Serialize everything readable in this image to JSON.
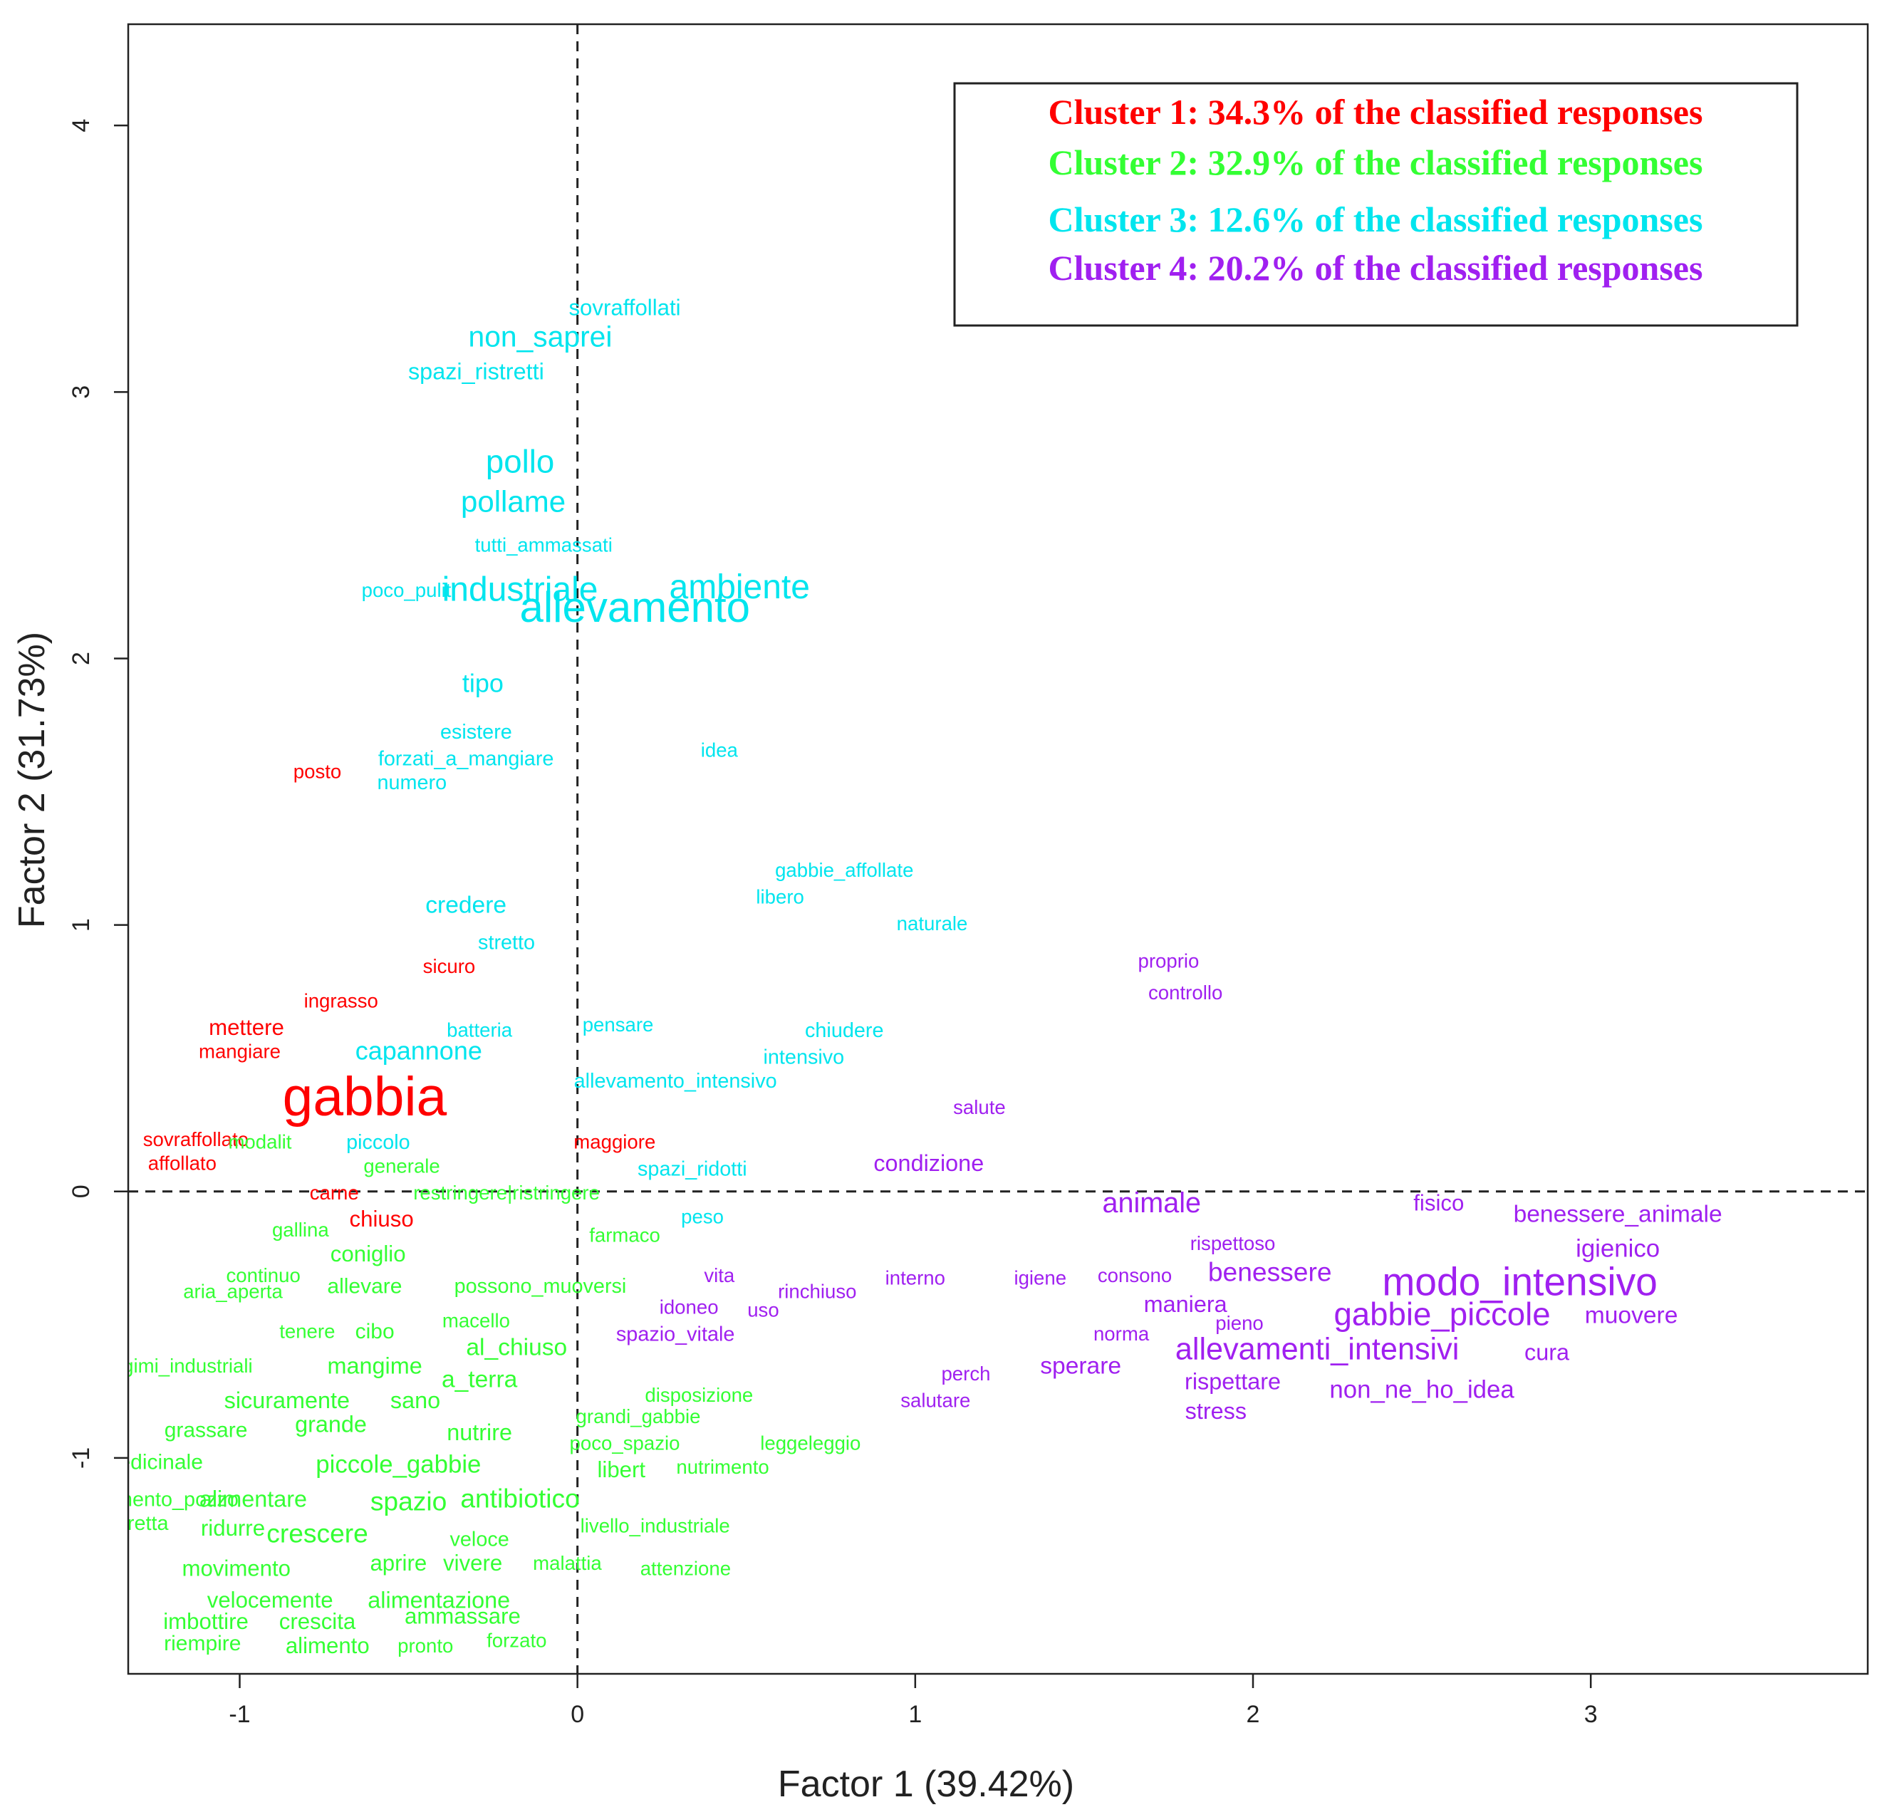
{
  "chart_data": {
    "type": "scatter",
    "xlabel": "Factor 1 (39.42%)",
    "ylabel": "Factor 2 (31.73%)",
    "xlim": [
      -1.33,
      3.82
    ],
    "ylim": [
      -1.81,
      4.38
    ],
    "x_ticks": [
      -1,
      0,
      1,
      2,
      3
    ],
    "y_ticks": [
      -1,
      0,
      1,
      2,
      3,
      4
    ],
    "x_tick_labels": [
      "-1",
      "0",
      "1",
      "2",
      "3"
    ],
    "y_tick_labels": [
      "-1",
      "0",
      "1",
      "2",
      "3",
      "4"
    ],
    "reference_lines": {
      "x": 0,
      "y": 0,
      "style": "dashed"
    },
    "grid": false,
    "legend_position": "top-right",
    "colors": {
      "cluster1": "#ff0000",
      "cluster2": "#33ff33",
      "cluster3": "#00e5ee",
      "cluster4": "#a020f0"
    },
    "legend": [
      {
        "text": "Cluster 1: 34.3% of the classified responses",
        "cluster": "cluster1"
      },
      {
        "text": "Cluster 2: 32.9% of the classified responses",
        "cluster": "cluster2"
      },
      {
        "text": "Cluster 3: 12.6% of the classified responses",
        "cluster": "cluster3"
      },
      {
        "text": "Cluster 4: 20.2% of the classified responses",
        "cluster": "cluster4"
      }
    ],
    "points": [
      {
        "label": "sovraffollati",
        "x": 0.14,
        "y": 3.31,
        "cluster": "cluster3",
        "size": 1.3
      },
      {
        "label": "non_saprei",
        "x": -0.11,
        "y": 3.2,
        "cluster": "cluster3",
        "size": 1.7
      },
      {
        "label": "spazi_ristretti",
        "x": -0.3,
        "y": 3.07,
        "cluster": "cluster3",
        "size": 1.35
      },
      {
        "label": "pollo",
        "x": -0.17,
        "y": 2.73,
        "cluster": "cluster3",
        "size": 1.9
      },
      {
        "label": "pollame",
        "x": -0.19,
        "y": 2.58,
        "cluster": "cluster3",
        "size": 1.75
      },
      {
        "label": "tutti_ammassati",
        "x": -0.1,
        "y": 2.42,
        "cluster": "cluster3",
        "size": 1.15
      },
      {
        "label": "industriale",
        "x": -0.17,
        "y": 2.25,
        "cluster": "cluster3",
        "size": 2.0
      },
      {
        "label": "ambiente",
        "x": 0.48,
        "y": 2.26,
        "cluster": "cluster3",
        "size": 2.0
      },
      {
        "label": "allevamento",
        "x": 0.17,
        "y": 2.18,
        "cluster": "cluster3",
        "size": 2.5
      },
      {
        "label": "poco_puliti",
        "x": -0.5,
        "y": 2.25,
        "cluster": "cluster3",
        "size": 1.15
      },
      {
        "label": "tipo",
        "x": -0.28,
        "y": 1.9,
        "cluster": "cluster3",
        "size": 1.5
      },
      {
        "label": "esistere",
        "x": -0.3,
        "y": 1.72,
        "cluster": "cluster3",
        "size": 1.2
      },
      {
        "label": "forzati_a_mangiare",
        "x": -0.33,
        "y": 1.62,
        "cluster": "cluster3",
        "size": 1.2
      },
      {
        "label": "numero",
        "x": -0.49,
        "y": 1.53,
        "cluster": "cluster3",
        "size": 1.2
      },
      {
        "label": "idea",
        "x": 0.42,
        "y": 1.65,
        "cluster": "cluster3",
        "size": 1.15
      },
      {
        "label": "gabbie_affollate",
        "x": 0.79,
        "y": 1.2,
        "cluster": "cluster3",
        "size": 1.15
      },
      {
        "label": "libero",
        "x": 0.6,
        "y": 1.1,
        "cluster": "cluster3",
        "size": 1.15
      },
      {
        "label": "naturale",
        "x": 1.05,
        "y": 1.0,
        "cluster": "cluster3",
        "size": 1.15
      },
      {
        "label": "credere",
        "x": -0.33,
        "y": 1.07,
        "cluster": "cluster3",
        "size": 1.4
      },
      {
        "label": "stretto",
        "x": -0.21,
        "y": 0.93,
        "cluster": "cluster3",
        "size": 1.2
      },
      {
        "label": "batteria",
        "x": -0.29,
        "y": 0.6,
        "cluster": "cluster3",
        "size": 1.15
      },
      {
        "label": "pensare",
        "x": 0.12,
        "y": 0.62,
        "cluster": "cluster3",
        "size": 1.15
      },
      {
        "label": "chiudere",
        "x": 0.79,
        "y": 0.6,
        "cluster": "cluster3",
        "size": 1.2
      },
      {
        "label": "capannone",
        "x": -0.47,
        "y": 0.52,
        "cluster": "cluster3",
        "size": 1.5
      },
      {
        "label": "intensivo",
        "x": 0.67,
        "y": 0.5,
        "cluster": "cluster3",
        "size": 1.2
      },
      {
        "label": "allevamento_intensivo",
        "x": 0.29,
        "y": 0.41,
        "cluster": "cluster3",
        "size": 1.2
      },
      {
        "label": "piccolo",
        "x": -0.59,
        "y": 0.18,
        "cluster": "cluster3",
        "size": 1.2
      },
      {
        "label": "spazi_ridotti",
        "x": 0.34,
        "y": 0.08,
        "cluster": "cluster3",
        "size": 1.2
      },
      {
        "label": "peso",
        "x": 0.37,
        "y": -0.1,
        "cluster": "cluster3",
        "size": 1.15
      },
      {
        "label": "posto",
        "x": -0.77,
        "y": 1.57,
        "cluster": "cluster1",
        "size": 1.15
      },
      {
        "label": "sicuro",
        "x": -0.38,
        "y": 0.84,
        "cluster": "cluster1",
        "size": 1.15
      },
      {
        "label": "ingrasso",
        "x": -0.7,
        "y": 0.71,
        "cluster": "cluster1",
        "size": 1.15
      },
      {
        "label": "mettere",
        "x": -0.98,
        "y": 0.61,
        "cluster": "cluster1",
        "size": 1.3
      },
      {
        "label": "mangiare",
        "x": -1.0,
        "y": 0.52,
        "cluster": "cluster1",
        "size": 1.15
      },
      {
        "label": "gabbia",
        "x": -0.63,
        "y": 0.34,
        "cluster": "cluster1",
        "size": 3.2
      },
      {
        "label": "sovraffollato",
        "x": -1.13,
        "y": 0.19,
        "cluster": "cluster1",
        "size": 1.15
      },
      {
        "label": "affollato",
        "x": -1.17,
        "y": 0.1,
        "cluster": "cluster1",
        "size": 1.15
      },
      {
        "label": "maggiore",
        "x": 0.11,
        "y": 0.18,
        "cluster": "cluster1",
        "size": 1.15
      },
      {
        "label": "carne",
        "x": -0.72,
        "y": -0.01,
        "cluster": "cluster1",
        "size": 1.15
      },
      {
        "label": "chiuso",
        "x": -0.58,
        "y": -0.11,
        "cluster": "cluster1",
        "size": 1.3
      },
      {
        "label": "modalit",
        "x": -0.94,
        "y": 0.18,
        "cluster": "cluster2",
        "size": 1.15
      },
      {
        "label": "generale",
        "x": -0.52,
        "y": 0.09,
        "cluster": "cluster2",
        "size": 1.15
      },
      {
        "label": "restringere|ristringere",
        "x": -0.21,
        "y": -0.01,
        "cluster": "cluster2",
        "size": 1.15
      },
      {
        "label": "gallina",
        "x": -0.82,
        "y": -0.15,
        "cluster": "cluster2",
        "size": 1.15
      },
      {
        "label": "farmaco",
        "x": 0.14,
        "y": -0.17,
        "cluster": "cluster2",
        "size": 1.15
      },
      {
        "label": "coniglio",
        "x": -0.62,
        "y": -0.24,
        "cluster": "cluster2",
        "size": 1.3
      },
      {
        "label": "continuo",
        "x": -0.93,
        "y": -0.32,
        "cluster": "cluster2",
        "size": 1.15
      },
      {
        "label": "aria_aperta",
        "x": -1.02,
        "y": -0.38,
        "cluster": "cluster2",
        "size": 1.15
      },
      {
        "label": "allevare",
        "x": -0.63,
        "y": -0.36,
        "cluster": "cluster2",
        "size": 1.25
      },
      {
        "label": "possono_muoversi",
        "x": -0.11,
        "y": -0.36,
        "cluster": "cluster2",
        "size": 1.2
      },
      {
        "label": "macello",
        "x": -0.3,
        "y": -0.49,
        "cluster": "cluster2",
        "size": 1.15
      },
      {
        "label": "tenere",
        "x": -0.8,
        "y": -0.53,
        "cluster": "cluster2",
        "size": 1.15
      },
      {
        "label": "cibo",
        "x": -0.6,
        "y": -0.53,
        "cluster": "cluster2",
        "size": 1.25
      },
      {
        "label": "al_chiuso",
        "x": -0.18,
        "y": -0.59,
        "cluster": "cluster2",
        "size": 1.4
      },
      {
        "label": "regimi_industriali",
        "x": -1.18,
        "y": -0.66,
        "cluster": "cluster2",
        "size": 1.15
      },
      {
        "label": "mangime",
        "x": -0.6,
        "y": -0.66,
        "cluster": "cluster2",
        "size": 1.35
      },
      {
        "label": "a_terra",
        "x": -0.29,
        "y": -0.71,
        "cluster": "cluster2",
        "size": 1.4
      },
      {
        "label": "disposizione",
        "x": 0.36,
        "y": -0.77,
        "cluster": "cluster2",
        "size": 1.15
      },
      {
        "label": "sicuramente",
        "x": -0.86,
        "y": -0.79,
        "cluster": "cluster2",
        "size": 1.35
      },
      {
        "label": "sano",
        "x": -0.48,
        "y": -0.79,
        "cluster": "cluster2",
        "size": 1.35
      },
      {
        "label": "grandi_gabbie",
        "x": 0.18,
        "y": -0.85,
        "cluster": "cluster2",
        "size": 1.15
      },
      {
        "label": "grassare",
        "x": -1.1,
        "y": -0.9,
        "cluster": "cluster2",
        "size": 1.25
      },
      {
        "label": "grande",
        "x": -0.73,
        "y": -0.88,
        "cluster": "cluster2",
        "size": 1.35
      },
      {
        "label": "nutrire",
        "x": -0.29,
        "y": -0.91,
        "cluster": "cluster2",
        "size": 1.35
      },
      {
        "label": "poco_spazio",
        "x": 0.14,
        "y": -0.95,
        "cluster": "cluster2",
        "size": 1.15
      },
      {
        "label": "leggeleggio",
        "x": 0.69,
        "y": -0.95,
        "cluster": "cluster2",
        "size": 1.15
      },
      {
        "label": "piccole_gabbie",
        "x": -0.53,
        "y": -1.03,
        "cluster": "cluster2",
        "size": 1.45
      },
      {
        "label": "nutrimento",
        "x": 0.43,
        "y": -1.04,
        "cluster": "cluster2",
        "size": 1.15
      },
      {
        "label": "libert",
        "x": 0.13,
        "y": -1.05,
        "cluster": "cluster2",
        "size": 1.3
      },
      {
        "label": "medicinale",
        "x": -1.26,
        "y": -1.02,
        "cluster": "cluster2",
        "size": 1.25
      },
      {
        "label": "alimentare",
        "x": -0.96,
        "y": -1.16,
        "cluster": "cluster2",
        "size": 1.35
      },
      {
        "label": "spazio",
        "x": -0.5,
        "y": -1.17,
        "cluster": "cluster2",
        "size": 1.55
      },
      {
        "label": "antibiotico",
        "x": -0.17,
        "y": -1.16,
        "cluster": "cluster2",
        "size": 1.55
      },
      {
        "label": "sfruttamento_pozzo",
        "x": -1.27,
        "y": -1.16,
        "cluster": "cluster2",
        "size": 1.2
      },
      {
        "label": "fretta",
        "x": -1.28,
        "y": -1.25,
        "cluster": "cluster2",
        "size": 1.2
      },
      {
        "label": "ridurre",
        "x": -1.02,
        "y": -1.27,
        "cluster": "cluster2",
        "size": 1.3
      },
      {
        "label": "crescere",
        "x": -0.77,
        "y": -1.29,
        "cluster": "cluster2",
        "size": 1.55
      },
      {
        "label": "veloce",
        "x": -0.29,
        "y": -1.31,
        "cluster": "cluster2",
        "size": 1.2
      },
      {
        "label": "livello_industriale",
        "x": 0.23,
        "y": -1.26,
        "cluster": "cluster2",
        "size": 1.15
      },
      {
        "label": "movimento",
        "x": -1.01,
        "y": -1.42,
        "cluster": "cluster2",
        "size": 1.3
      },
      {
        "label": "aprire",
        "x": -0.53,
        "y": -1.4,
        "cluster": "cluster2",
        "size": 1.3
      },
      {
        "label": "vivere",
        "x": -0.31,
        "y": -1.4,
        "cluster": "cluster2",
        "size": 1.3
      },
      {
        "label": "malattia",
        "x": -0.03,
        "y": -1.4,
        "cluster": "cluster2",
        "size": 1.15
      },
      {
        "label": "attenzione",
        "x": 0.32,
        "y": -1.42,
        "cluster": "cluster2",
        "size": 1.15
      },
      {
        "label": "velocemente",
        "x": -0.91,
        "y": -1.54,
        "cluster": "cluster2",
        "size": 1.3
      },
      {
        "label": "alimentazione",
        "x": -0.41,
        "y": -1.54,
        "cluster": "cluster2",
        "size": 1.35
      },
      {
        "label": "imbottire",
        "x": -1.1,
        "y": -1.62,
        "cluster": "cluster2",
        "size": 1.3
      },
      {
        "label": "crescita",
        "x": -0.77,
        "y": -1.62,
        "cluster": "cluster2",
        "size": 1.3
      },
      {
        "label": "ammassare",
        "x": -0.34,
        "y": -1.6,
        "cluster": "cluster2",
        "size": 1.3
      },
      {
        "label": "riempire",
        "x": -1.11,
        "y": -1.7,
        "cluster": "cluster2",
        "size": 1.25
      },
      {
        "label": "alimento",
        "x": -0.74,
        "y": -1.71,
        "cluster": "cluster2",
        "size": 1.3
      },
      {
        "label": "pronto",
        "x": -0.45,
        "y": -1.71,
        "cluster": "cluster2",
        "size": 1.15
      },
      {
        "label": "forzato",
        "x": -0.18,
        "y": -1.69,
        "cluster": "cluster2",
        "size": 1.15
      },
      {
        "label": "proprio",
        "x": 1.75,
        "y": 0.86,
        "cluster": "cluster4",
        "size": 1.15
      },
      {
        "label": "controllo",
        "x": 1.8,
        "y": 0.74,
        "cluster": "cluster4",
        "size": 1.15
      },
      {
        "label": "salute",
        "x": 1.19,
        "y": 0.31,
        "cluster": "cluster4",
        "size": 1.15
      },
      {
        "label": "condizione",
        "x": 1.04,
        "y": 0.1,
        "cluster": "cluster4",
        "size": 1.35
      },
      {
        "label": "animale",
        "x": 1.7,
        "y": -0.05,
        "cluster": "cluster4",
        "size": 1.65
      },
      {
        "label": "fisico",
        "x": 2.55,
        "y": -0.05,
        "cluster": "cluster4",
        "size": 1.3
      },
      {
        "label": "benessere_animale",
        "x": 3.08,
        "y": -0.09,
        "cluster": "cluster4",
        "size": 1.4
      },
      {
        "label": "rispettoso",
        "x": 1.94,
        "y": -0.2,
        "cluster": "cluster4",
        "size": 1.15
      },
      {
        "label": "igienico",
        "x": 3.08,
        "y": -0.22,
        "cluster": "cluster4",
        "size": 1.45
      },
      {
        "label": "benessere",
        "x": 2.05,
        "y": -0.31,
        "cluster": "cluster4",
        "size": 1.55
      },
      {
        "label": "igiene",
        "x": 1.37,
        "y": -0.33,
        "cluster": "cluster4",
        "size": 1.15
      },
      {
        "label": "consono",
        "x": 1.65,
        "y": -0.32,
        "cluster": "cluster4",
        "size": 1.15
      },
      {
        "label": "modo_intensivo",
        "x": 2.79,
        "y": -0.35,
        "cluster": "cluster4",
        "size": 2.3
      },
      {
        "label": "interno",
        "x": 1.0,
        "y": -0.33,
        "cluster": "cluster4",
        "size": 1.15
      },
      {
        "label": "vita",
        "x": 0.42,
        "y": -0.32,
        "cluster": "cluster4",
        "size": 1.15
      },
      {
        "label": "rinchiuso",
        "x": 0.71,
        "y": -0.38,
        "cluster": "cluster4",
        "size": 1.15
      },
      {
        "label": "idoneo",
        "x": 0.33,
        "y": -0.44,
        "cluster": "cluster4",
        "size": 1.15
      },
      {
        "label": "uso",
        "x": 0.55,
        "y": -0.45,
        "cluster": "cluster4",
        "size": 1.15
      },
      {
        "label": "maniera",
        "x": 1.8,
        "y": -0.43,
        "cluster": "cluster4",
        "size": 1.35
      },
      {
        "label": "gabbie_piccole",
        "x": 2.56,
        "y": -0.47,
        "cluster": "cluster4",
        "size": 1.9
      },
      {
        "label": "muovere",
        "x": 3.12,
        "y": -0.47,
        "cluster": "cluster4",
        "size": 1.4
      },
      {
        "label": "pieno",
        "x": 1.96,
        "y": -0.5,
        "cluster": "cluster4",
        "size": 1.15
      },
      {
        "label": "norma",
        "x": 1.61,
        "y": -0.54,
        "cluster": "cluster4",
        "size": 1.15
      },
      {
        "label": "spazio_vitale",
        "x": 0.29,
        "y": -0.54,
        "cluster": "cluster4",
        "size": 1.2
      },
      {
        "label": "allevamenti_intensivi",
        "x": 2.19,
        "y": -0.6,
        "cluster": "cluster4",
        "size": 1.8
      },
      {
        "label": "cura",
        "x": 2.87,
        "y": -0.61,
        "cluster": "cluster4",
        "size": 1.35
      },
      {
        "label": "sperare",
        "x": 1.49,
        "y": -0.66,
        "cluster": "cluster4",
        "size": 1.4
      },
      {
        "label": "perch",
        "x": 1.15,
        "y": -0.69,
        "cluster": "cluster4",
        "size": 1.15
      },
      {
        "label": "rispettare",
        "x": 1.94,
        "y": -0.72,
        "cluster": "cluster4",
        "size": 1.35
      },
      {
        "label": "non_ne_ho_idea",
        "x": 2.5,
        "y": -0.75,
        "cluster": "cluster4",
        "size": 1.45
      },
      {
        "label": "salutare",
        "x": 1.06,
        "y": -0.79,
        "cluster": "cluster4",
        "size": 1.15
      },
      {
        "label": "stress",
        "x": 1.89,
        "y": -0.83,
        "cluster": "cluster4",
        "size": 1.35
      }
    ]
  }
}
